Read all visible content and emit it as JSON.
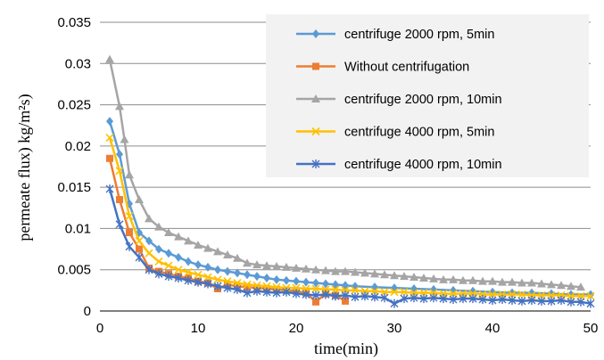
{
  "chart_data": {
    "type": "line",
    "title": "",
    "xlabel": "time(min)",
    "ylabel": "permeate flux) kg/m²s)",
    "xlim": [
      0,
      50
    ],
    "ylim": [
      0,
      0.035
    ],
    "x_ticks": [
      "0",
      "10",
      "20",
      "30",
      "40",
      "50"
    ],
    "y_ticks": [
      "0",
      "0.005",
      "0.01",
      "0.015",
      "0.02",
      "0.025",
      "0.03",
      "0.035"
    ],
    "grid": "horizontal",
    "legend_position": "top-right",
    "series": [
      {
        "name": "centrifuge 2000 rpm, 5min",
        "color": "#5b9bd5",
        "marker": "diamond",
        "x": [
          1,
          2,
          3,
          4,
          5,
          6,
          7,
          8,
          9,
          10,
          11,
          12,
          13,
          14,
          15,
          16,
          17,
          18,
          19,
          20,
          21,
          22,
          23,
          24,
          25,
          26,
          28,
          30,
          32,
          34,
          36,
          38,
          40,
          42,
          44,
          46,
          48,
          50
        ],
        "y": [
          0.023,
          0.019,
          0.013,
          0.0095,
          0.0085,
          0.0075,
          0.007,
          0.0065,
          0.006,
          0.0056,
          0.0053,
          0.005,
          0.0048,
          0.0046,
          0.0044,
          0.0042,
          0.004,
          0.0038,
          0.0037,
          0.0036,
          0.0035,
          0.0034,
          0.0033,
          0.0032,
          0.0031,
          0.003,
          0.0029,
          0.0028,
          0.0027,
          0.0026,
          0.0025,
          0.0024,
          0.0023,
          0.0022,
          0.0022,
          0.0021,
          0.002,
          0.002
        ]
      },
      {
        "name": "Without centrifugation",
        "color": "#ed7d31",
        "marker": "square",
        "x": [
          1,
          2,
          3,
          4,
          5,
          6,
          7,
          8,
          9,
          10,
          11,
          12,
          13,
          14,
          15,
          16,
          17,
          18,
          19,
          20,
          21,
          22,
          23,
          24,
          25
        ],
        "y": [
          0.0185,
          0.0135,
          0.0095,
          0.0075,
          0.0052,
          0.0048,
          0.0045,
          0.0042,
          0.004,
          0.0036,
          0.0034,
          0.0027,
          0.0032,
          0.003,
          0.0029,
          0.0028,
          0.0027,
          0.0026,
          0.0025,
          0.0024,
          0.0022,
          0.0011,
          0.0021,
          0.0019,
          0.0012
        ]
      },
      {
        "name": "centrifuge 2000 rpm, 10min",
        "color": "#a5a5a5",
        "marker": "triangle",
        "x": [
          1,
          2,
          2.5,
          3,
          4,
          5,
          6,
          7,
          8,
          9,
          10,
          11,
          12,
          13,
          14,
          15,
          16,
          17,
          18,
          19,
          20,
          21,
          22,
          23,
          24,
          25,
          26,
          27,
          28,
          29,
          30,
          31,
          32,
          33,
          34,
          35,
          36,
          37,
          38,
          39,
          40,
          41,
          42,
          43,
          44,
          45,
          46,
          47,
          48,
          49
        ],
        "y": [
          0.0305,
          0.0248,
          0.0208,
          0.0165,
          0.0135,
          0.0112,
          0.0102,
          0.0095,
          0.009,
          0.0085,
          0.008,
          0.0076,
          0.0072,
          0.0068,
          0.0064,
          0.0058,
          0.0056,
          0.0055,
          0.0054,
          0.0053,
          0.0052,
          0.0051,
          0.005,
          0.0049,
          0.0048,
          0.0048,
          0.0047,
          0.0046,
          0.0045,
          0.0044,
          0.0043,
          0.0042,
          0.0041,
          0.004,
          0.0039,
          0.0038,
          0.0038,
          0.0037,
          0.0037,
          0.0036,
          0.0036,
          0.0035,
          0.0035,
          0.0034,
          0.0034,
          0.0033,
          0.0032,
          0.0031,
          0.003,
          0.0029
        ]
      },
      {
        "name": "centrifuge 4000 rpm, 5min",
        "color": "#ffc000",
        "marker": "x",
        "x": [
          1,
          2,
          3,
          4,
          5,
          6,
          7,
          8,
          9,
          10,
          11,
          12,
          13,
          14,
          15,
          16,
          17,
          18,
          19,
          20,
          21,
          22,
          23,
          24,
          25,
          26,
          27,
          28,
          29,
          30,
          31,
          32,
          33,
          34,
          35,
          36,
          37,
          38,
          39,
          40,
          41,
          42,
          43,
          44,
          45,
          46,
          47,
          48,
          49,
          50
        ],
        "y": [
          0.021,
          0.017,
          0.0115,
          0.0085,
          0.007,
          0.006,
          0.0055,
          0.005,
          0.0047,
          0.0044,
          0.0041,
          0.0038,
          0.0036,
          0.0034,
          0.0032,
          0.0031,
          0.003,
          0.0029,
          0.0028,
          0.0028,
          0.0027,
          0.0027,
          0.0026,
          0.0026,
          0.0025,
          0.0025,
          0.0024,
          0.0024,
          0.0023,
          0.0023,
          0.0023,
          0.0022,
          0.0022,
          0.0022,
          0.0021,
          0.0021,
          0.0021,
          0.0021,
          0.002,
          0.002,
          0.002,
          0.002,
          0.002,
          0.0019,
          0.0019,
          0.0019,
          0.0019,
          0.0018,
          0.0018,
          0.0018
        ]
      },
      {
        "name": "centrifuge 4000 rpm, 10min",
        "color": "#4472c4",
        "marker": "star",
        "x": [
          1,
          2,
          3,
          4,
          5,
          6,
          7,
          8,
          9,
          10,
          11,
          12,
          13,
          14,
          15,
          16,
          17,
          18,
          19,
          20,
          21,
          22,
          23,
          24,
          25,
          26,
          27,
          28,
          29,
          30,
          31,
          32,
          33,
          34,
          35,
          36,
          37,
          38,
          39,
          40,
          41,
          42,
          43,
          44,
          45,
          46,
          47,
          48,
          49,
          50
        ],
        "y": [
          0.0148,
          0.0105,
          0.0078,
          0.0065,
          0.005,
          0.0045,
          0.0042,
          0.004,
          0.0037,
          0.0035,
          0.0033,
          0.003,
          0.0028,
          0.0026,
          0.0022,
          0.0024,
          0.0023,
          0.0022,
          0.0023,
          0.0021,
          0.002,
          0.0019,
          0.002,
          0.0018,
          0.0019,
          0.0017,
          0.0018,
          0.0017,
          0.0016,
          0.0009,
          0.0015,
          0.0016,
          0.0015,
          0.0016,
          0.0015,
          0.0014,
          0.0015,
          0.0015,
          0.0014,
          0.0013,
          0.0014,
          0.0013,
          0.0012,
          0.0013,
          0.0012,
          0.0012,
          0.0013,
          0.0011,
          0.0011,
          0.0009
        ]
      }
    ]
  }
}
